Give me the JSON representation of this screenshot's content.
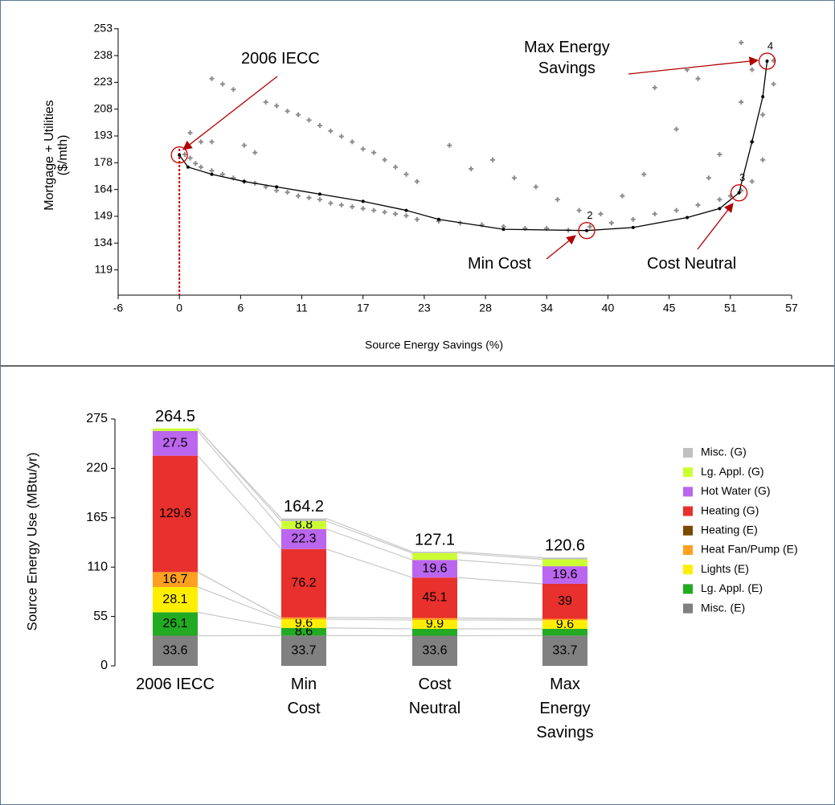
{
  "chart_data": [
    {
      "type": "scatter",
      "x_label": "Source Energy Savings (%)",
      "y_label": "Mortgage + Utilities\n($/mth)",
      "xlim": [
        -5.667,
        56.667
      ],
      "xticks": [
        {
          "value": -5.667,
          "label": "-6"
        },
        0,
        {
          "value": 5.667,
          "label": "6"
        },
        {
          "value": 11.333,
          "label": "11"
        },
        17,
        {
          "value": 22.667,
          "label": "23"
        },
        {
          "value": 28.333,
          "label": "28"
        },
        34,
        {
          "value": 39.667,
          "label": "40"
        },
        {
          "value": 45.333,
          "label": "45"
        },
        51,
        {
          "value": 56.667,
          "label": "57"
        }
      ],
      "ylim": [
        105,
        253
      ],
      "yticks": [
        119,
        {
          "value": 133.85,
          "label": "134"
        },
        {
          "value": 148.7,
          "label": "149"
        },
        {
          "value": 163.55,
          "label": "164"
        },
        {
          "value": 178.4,
          "label": "178"
        },
        {
          "value": 193.25,
          "label": "193"
        },
        {
          "value": 208.1,
          "label": "208"
        },
        {
          "value": 222.95,
          "label": "223"
        },
        {
          "value": 237.8,
          "label": "238"
        },
        {
          "value": 252.65,
          "label": "253"
        }
      ],
      "points": {
        "color": "#8c8c8c",
        "x": [
          0.5,
          1,
          1.5,
          2,
          3,
          4,
          5,
          6,
          7,
          8,
          9,
          10,
          11,
          12,
          13,
          14,
          15,
          16,
          17,
          18,
          19,
          20,
          21,
          22,
          24,
          26,
          28,
          30,
          32,
          34,
          36,
          38,
          40,
          42,
          44,
          46,
          48,
          50,
          51,
          52,
          53,
          3,
          4,
          5,
          8,
          9,
          10,
          11,
          12,
          13,
          14,
          15,
          16,
          17,
          18,
          19,
          20,
          21,
          22,
          25,
          27,
          29,
          31,
          33,
          35,
          37,
          39,
          41,
          43,
          44,
          46,
          47,
          48,
          49,
          50,
          52,
          53,
          53,
          54,
          54,
          55,
          55,
          52,
          1,
          2,
          6,
          7,
          3
        ],
        "y": [
          183,
          181,
          178,
          176,
          174,
          172,
          170,
          168,
          167,
          165,
          163,
          162,
          160,
          159,
          158,
          156,
          155,
          154,
          153,
          152,
          151,
          150,
          149,
          147,
          146,
          145,
          144,
          143,
          142,
          142,
          141,
          143,
          145,
          147,
          150,
          152,
          155,
          158,
          160,
          163,
          168,
          225,
          222,
          219,
          212,
          210,
          207,
          205,
          202,
          199,
          196,
          193,
          190,
          186,
          184,
          180,
          176,
          172,
          168,
          188,
          175,
          180,
          170,
          165,
          158,
          152,
          150,
          160,
          172,
          220,
          197,
          230,
          225,
          170,
          183,
          245,
          230,
          190,
          205,
          180,
          222,
          235,
          212,
          195,
          190,
          188,
          184,
          190
        ]
      },
      "curve": {
        "color": "#000000",
        "x": [
          0,
          0.8,
          3,
          6,
          9,
          13,
          17,
          21,
          24,
          30,
          37.7,
          42,
          47,
          50,
          51.8,
          53,
          54,
          54.4
        ],
        "y": [
          182.7,
          176,
          172,
          168,
          165,
          161,
          157,
          152,
          147,
          141.5,
          140.8,
          142.5,
          148,
          153,
          161.7,
          190,
          215,
          234.7
        ]
      },
      "markers": {
        "color": "#cc0000",
        "x": [
          0,
          37.7,
          51.8,
          54.4
        ],
        "y": [
          182.7,
          140.8,
          161.7,
          234.7
        ],
        "labels": [
          null,
          "2",
          "3",
          "4"
        ]
      },
      "reference_line": {
        "x": 0,
        "color": "#cc0000"
      },
      "annotations": [
        "2006 IECC",
        "Max Energy\nSavings",
        "Min Cost",
        "Cost Neutral"
      ]
    },
    {
      "type": "bar",
      "stacked": true,
      "y_label": "Source Energy Use (MBtu/yr)",
      "categories": [
        "2006 IECC",
        "Min\nCost",
        "Cost\nNeutral",
        "Max\nEnergy\nSavings"
      ],
      "totals": [
        264.5,
        164.2,
        127.1,
        120.6
      ],
      "ylim": [
        0,
        275
      ],
      "yticks": [
        0,
        55,
        110,
        165,
        220,
        275
      ],
      "legend": "right",
      "series": [
        {
          "name": "Misc. (G)",
          "color": "#c0c0c0",
          "values": [
            0,
            3.0,
            1.4,
            1.9
          ]
        },
        {
          "name": "Lg. Appl. (G)",
          "color": "#ccff33",
          "values": [
            2.9,
            8.8,
            7.7,
            7.7
          ]
        },
        {
          "name": "Hot Water (G)",
          "color": "#bb66ee",
          "values": [
            27.5,
            22.3,
            19.6,
            19.6
          ]
        },
        {
          "name": "Heating (G)",
          "color": "#e8302c",
          "values": [
            129.6,
            76.2,
            45.1,
            39.0
          ]
        },
        {
          "name": "Heating (E)",
          "color": "#7b4a00",
          "values": [
            0,
            0,
            0,
            0
          ]
        },
        {
          "name": "Heat Fan/Pump (E)",
          "color": "#ffa020",
          "values": [
            16.7,
            2.0,
            2.2,
            1.5
          ]
        },
        {
          "name": "Lights (E)",
          "color": "#ffee00",
          "values": [
            28.1,
            9.6,
            9.9,
            9.6
          ]
        },
        {
          "name": "Lg. Appl. (E)",
          "color": "#22aa22",
          "values": [
            26.1,
            8.6,
            7.6,
            7.6
          ]
        },
        {
          "name": "Misc. (E)",
          "color": "#808080",
          "values": [
            33.6,
            33.7,
            33.6,
            33.7
          ]
        }
      ]
    }
  ]
}
